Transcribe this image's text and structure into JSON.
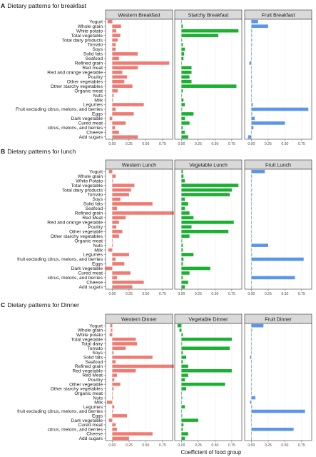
{
  "xlabel": "Coefficient of food group",
  "colors": {
    "western": "#ef7b72",
    "starchy": "#1bb031",
    "fruit": "#5c96e8",
    "strip": "#d9d9d9",
    "grid": "#ebebeb"
  },
  "chart_data": [
    {
      "type": "bar",
      "orientation": "horizontal",
      "letter": "A",
      "title": "Dietary patterns for breakfast",
      "categories": [
        "Yogurt",
        "Whole grain",
        "White potato",
        "Total vegetable",
        "Total dairy products",
        "Tomato",
        "Soys",
        "Solid fats",
        "Seafood",
        "Refined grain",
        "Red meat",
        "Red and orange vegetable",
        "Poultry",
        "Other vegetables",
        "Other starchy vegetables",
        "Organic meat",
        "Nuts",
        "Milk",
        "Legumes",
        "Fruit excluding citrus, melons, and berries",
        "Eggs",
        "Dark vegetable",
        "Cured meat",
        "citrus, melons, and berries",
        "Cheese",
        "Add sugars"
      ],
      "x_ticks": [
        "0.00",
        "0.25",
        "0.50",
        "0.75"
      ],
      "xlim": [
        -0.1,
        0.9
      ],
      "series": [
        {
          "name": "Western Breakfast",
          "values": [
            -0.07,
            0.13,
            0.06,
            0.12,
            0.08,
            0.05,
            0.05,
            0.38,
            0.1,
            0.85,
            0.38,
            0.15,
            0.22,
            0.18,
            0.3,
            0.08,
            0.02,
            0.01,
            0.47,
            0.05,
            0.32,
            -0.04,
            0.2,
            0.04,
            0.1,
            0.38
          ]
        },
        {
          "name": "Starchy Breakfast",
          "values": [
            0.0,
            0.02,
            0.85,
            0.55,
            0.01,
            0.02,
            0.05,
            0.04,
            0.03,
            0.0,
            0.15,
            0.15,
            0.12,
            0.15,
            0.82,
            0.02,
            0.0,
            0.03,
            0.05,
            0.01,
            0.18,
            0.05,
            0.12,
            0.02,
            0.05,
            0.1
          ]
        },
        {
          "name": "Fruit Breakfast",
          "values": [
            0.1,
            0.25,
            0.01,
            0.01,
            0.01,
            0.01,
            0.0,
            0.0,
            0.0,
            -0.03,
            0.0,
            0.0,
            0.01,
            0.0,
            0.01,
            0.0,
            0.0,
            0.0,
            0.02,
            0.85,
            0.01,
            0.05,
            0.5,
            0.03,
            0.0,
            -0.05
          ]
        }
      ]
    },
    {
      "type": "bar",
      "orientation": "horizontal",
      "letter": "B",
      "title": "Dietary patterns for lunch",
      "categories": [
        "Yogurt",
        "Whole grain",
        "White Potato",
        "Total vegetable",
        "Total dairy products",
        "Tomato",
        "Soys",
        "Solid fats",
        "Seafood",
        "Refined grain",
        "Red Meat",
        "Red and orange vegetable",
        "Poultry",
        "Other vegetable",
        "Other starchy vegetables",
        "Organic meat",
        "Nuts",
        "Milk",
        "Legumes",
        "fruit excluding citrus, melons, and berries",
        "Eggs",
        "Dark vegetable",
        "Cured meat",
        "citrus, melons, and berries",
        "Cheese",
        "Add sugars"
      ],
      "x_ticks": [
        "0.00",
        "0.25",
        "0.50",
        "0.75"
      ],
      "xlim": [
        -0.1,
        0.9
      ],
      "series": [
        {
          "name": "Western Lunch",
          "values": [
            -0.05,
            0.05,
            0.01,
            0.33,
            0.28,
            0.25,
            0.12,
            0.6,
            0.07,
            0.92,
            0.2,
            0.1,
            0.06,
            0.15,
            0.1,
            0.0,
            0.01,
            -0.06,
            0.25,
            0.05,
            0.18,
            -0.1,
            0.27,
            0.07,
            0.47,
            0.3
          ]
        },
        {
          "name": "Vegetable Lunch",
          "values": [
            0.02,
            0.03,
            0.05,
            0.85,
            0.75,
            0.72,
            0.05,
            0.1,
            0.05,
            0.12,
            0.18,
            0.78,
            0.15,
            0.7,
            0.12,
            0.01,
            0.02,
            0.02,
            0.18,
            0.03,
            0.02,
            0.43,
            0.12,
            0.02,
            0.1,
            0.05
          ]
        },
        {
          "name": "Fruit Lunch",
          "values": [
            0.2,
            0.01,
            0.0,
            0.0,
            0.01,
            0.01,
            0.0,
            0.0,
            0.0,
            0.0,
            0.0,
            0.0,
            0.0,
            0.0,
            0.0,
            0.0,
            0.25,
            0.0,
            0.01,
            0.78,
            0.0,
            0.01,
            0.0,
            0.65,
            0.0,
            0.0
          ]
        }
      ]
    },
    {
      "type": "bar",
      "orientation": "horizontal",
      "letter": "C",
      "title": "Dietary patterns for Dinner",
      "categories": [
        "Yogurt",
        "Whole grain",
        "White potato",
        "Total vegetable",
        "Total dairy",
        "Tomato",
        "Soys",
        "Solid fats",
        "Seafood",
        "Refined grain",
        "Red vegetable",
        "Red Meat",
        "Poultry",
        "Other vegetable",
        "Other starchy vegetables",
        "Organic meat",
        "Nuts",
        "Milk",
        "Legumes",
        "fruit excluding citrus, melons, and berries",
        "Eggs",
        "Dark vegetable",
        "Cured meat",
        "citrus, melons, and berries",
        "Cheese",
        "Add sugars"
      ],
      "x_ticks": [
        "0.00",
        "0.25",
        "0.50",
        "0.75"
      ],
      "xlim": [
        -0.1,
        0.9
      ],
      "series": [
        {
          "name": "Western Dinner",
          "values": [
            -0.03,
            -0.02,
            -0.04,
            0.35,
            0.37,
            0.2,
            0.02,
            0.6,
            0.05,
            0.92,
            0.35,
            0.07,
            0.03,
            0.12,
            0.02,
            0.0,
            0.01,
            -0.08,
            0.03,
            0.01,
            0.22,
            -0.05,
            0.05,
            0.07,
            0.6,
            0.25
          ]
        },
        {
          "name": "Vegetable Dinner",
          "values": [
            -0.06,
            -0.03,
            0.02,
            0.75,
            0.01,
            0.72,
            0.02,
            0.07,
            0.02,
            0.1,
            0.75,
            0.1,
            0.05,
            0.65,
            0.07,
            0.0,
            0.01,
            0.0,
            0.05,
            0.0,
            0.01,
            0.25,
            0.03,
            0.02,
            0.1,
            0.05
          ]
        },
        {
          "name": "Fruit Dinner",
          "values": [
            0.18,
            0.01,
            0.0,
            0.0,
            0.0,
            0.0,
            0.0,
            -0.02,
            0.0,
            0.0,
            0.0,
            0.0,
            0.0,
            0.0,
            0.0,
            0.0,
            0.06,
            -0.02,
            0.01,
            0.8,
            0.0,
            0.0,
            0.0,
            0.63,
            0.0,
            0.0
          ]
        }
      ]
    }
  ]
}
